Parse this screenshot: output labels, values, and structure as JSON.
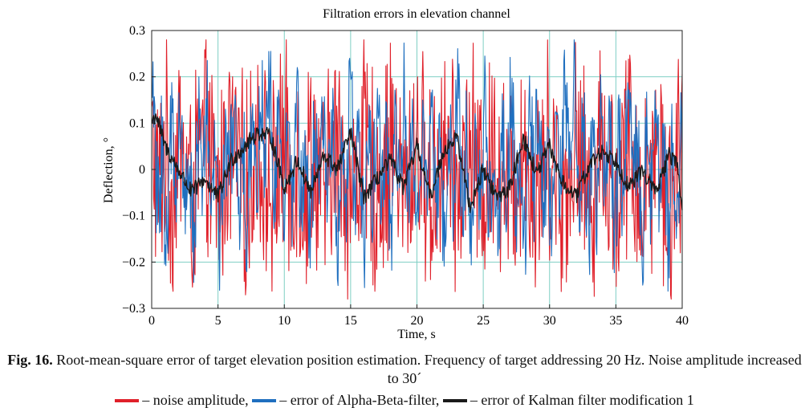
{
  "chart_data": {
    "type": "line",
    "title": "Filtration errors in elevation channel",
    "xlabel": "Time, s",
    "ylabel": "Deflection, °",
    "xlim": [
      0,
      40
    ],
    "ylim": [
      -0.3,
      0.3
    ],
    "xticks": [
      0,
      5,
      10,
      15,
      20,
      25,
      30,
      35,
      40
    ],
    "yticks": [
      0.3,
      0.2,
      0.1,
      0,
      -0.1,
      -0.2,
      -0.3
    ],
    "ytick_labels": [
      "0.3",
      "0.2",
      "0.1",
      "0",
      "−0.1",
      "−0.2",
      "−0.3"
    ],
    "grid": true,
    "grid_color": "#7fcfc4",
    "series": [
      {
        "name": "noise amplitude",
        "color": "#e0202a",
        "amplitude": 0.27,
        "keypoints": [
          [
            0,
            0.24
          ],
          [
            0.5,
            -0.25
          ],
          [
            1,
            0.24
          ],
          [
            1.5,
            -0.24
          ],
          [
            2,
            0.25
          ],
          [
            3,
            -0.24
          ],
          [
            4,
            0.24
          ],
          [
            5,
            -0.25
          ],
          [
            6,
            0.24
          ],
          [
            7,
            -0.24
          ],
          [
            8,
            0.25
          ],
          [
            9,
            -0.24
          ],
          [
            10,
            0.25
          ],
          [
            10.5,
            -0.26
          ],
          [
            11,
            0.22
          ],
          [
            11.5,
            -0.27
          ],
          [
            12,
            0.24
          ],
          [
            13,
            -0.25
          ],
          [
            14,
            0.24
          ],
          [
            15,
            -0.25
          ],
          [
            16,
            0.24
          ],
          [
            17,
            -0.25
          ],
          [
            18,
            0.24
          ],
          [
            19,
            -0.24
          ],
          [
            20,
            0.24
          ],
          [
            21,
            -0.25
          ],
          [
            22,
            0.24
          ],
          [
            23,
            -0.24
          ],
          [
            24,
            0.24
          ],
          [
            25,
            -0.25
          ],
          [
            26,
            0.24
          ],
          [
            27,
            -0.25
          ],
          [
            28,
            0.24
          ],
          [
            29,
            -0.24
          ],
          [
            30,
            0.24
          ],
          [
            31,
            -0.25
          ],
          [
            32,
            0.24
          ],
          [
            33,
            -0.25
          ],
          [
            34,
            0.24
          ],
          [
            35,
            -0.25
          ],
          [
            36,
            0.24
          ],
          [
            37,
            -0.25
          ],
          [
            38,
            0.24
          ],
          [
            39,
            -0.25
          ],
          [
            40,
            0.22
          ]
        ]
      },
      {
        "name": "error of Alpha-Beta-filter",
        "color": "#1f6fbf",
        "amplitude": 0.24,
        "keypoints": [
          [
            0,
            0.24
          ],
          [
            1,
            -0.22
          ],
          [
            2,
            0.2
          ],
          [
            3,
            -0.21
          ],
          [
            4,
            0.2
          ],
          [
            5,
            -0.22
          ],
          [
            6,
            0.21
          ],
          [
            7,
            -0.21
          ],
          [
            8,
            0.2
          ],
          [
            9,
            0.22
          ],
          [
            10,
            -0.22
          ],
          [
            11,
            0.21
          ],
          [
            12,
            -0.21
          ],
          [
            13,
            0.2
          ],
          [
            14,
            -0.22
          ],
          [
            15,
            0.21
          ],
          [
            16,
            -0.22
          ],
          [
            17,
            0.2
          ],
          [
            18,
            -0.21
          ],
          [
            19,
            0.22
          ],
          [
            20,
            -0.21
          ],
          [
            21,
            0.2
          ],
          [
            22,
            -0.22
          ],
          [
            23,
            0.21
          ],
          [
            24,
            -0.21
          ],
          [
            25,
            0.2
          ],
          [
            26,
            -0.22
          ],
          [
            27,
            0.23
          ],
          [
            28,
            -0.21
          ],
          [
            29,
            0.22
          ],
          [
            30,
            -0.22
          ],
          [
            31,
            0.21
          ],
          [
            32,
            0.25
          ],
          [
            33,
            -0.22
          ],
          [
            34,
            0.21
          ],
          [
            35,
            -0.21
          ],
          [
            36,
            0.2
          ],
          [
            37,
            -0.22
          ],
          [
            38,
            0.21
          ],
          [
            39,
            -0.22
          ],
          [
            40,
            0.12
          ]
        ]
      },
      {
        "name": "error of Kalman filter modification 1",
        "color": "#1a1a1a",
        "amplitude": 0.12,
        "keypoints": [
          [
            0,
            0.1
          ],
          [
            0.3,
            0.12
          ],
          [
            1,
            0.05
          ],
          [
            2,
            0.0
          ],
          [
            3,
            -0.05
          ],
          [
            4,
            -0.02
          ],
          [
            5,
            -0.06
          ],
          [
            6,
            0.02
          ],
          [
            7,
            0.05
          ],
          [
            8,
            0.08
          ],
          [
            9,
            0.07
          ],
          [
            10,
            -0.04
          ],
          [
            11,
            0.02
          ],
          [
            12,
            -0.05
          ],
          [
            13,
            0.03
          ],
          [
            14,
            0.0
          ],
          [
            15,
            0.08
          ],
          [
            16,
            -0.06
          ],
          [
            17,
            -0.02
          ],
          [
            18,
            0.02
          ],
          [
            19,
            -0.04
          ],
          [
            20,
            0.05
          ],
          [
            21,
            -0.06
          ],
          [
            22,
            0.04
          ],
          [
            23,
            0.07
          ],
          [
            24,
            -0.08
          ],
          [
            25,
            0.0
          ],
          [
            26,
            -0.06
          ],
          [
            27,
            -0.04
          ],
          [
            28,
            0.07
          ],
          [
            29,
            -0.01
          ],
          [
            30,
            0.05
          ],
          [
            31,
            -0.03
          ],
          [
            32,
            -0.06
          ],
          [
            33,
            0.01
          ],
          [
            34,
            0.04
          ],
          [
            35,
            0.02
          ],
          [
            36,
            -0.04
          ],
          [
            37,
            0.0
          ],
          [
            38,
            -0.05
          ],
          [
            39,
            0.03
          ],
          [
            39.6,
            0.02
          ],
          [
            40,
            -0.1
          ]
        ]
      }
    ]
  },
  "caption": {
    "fig_label": "Fig. 16.",
    "text": "Root-mean-square error of target elevation position estimation. Frequency of target addressing 20 Hz. Noise amplitude increased to 30´",
    "legend": [
      {
        "label": "– noise amplitude,",
        "color": "#e0202a"
      },
      {
        "label": "– error of Alpha-Beta-filter,",
        "color": "#1f6fbf"
      },
      {
        "label": "– error of Kalman filter modification 1",
        "color": "#1a1a1a"
      }
    ]
  }
}
